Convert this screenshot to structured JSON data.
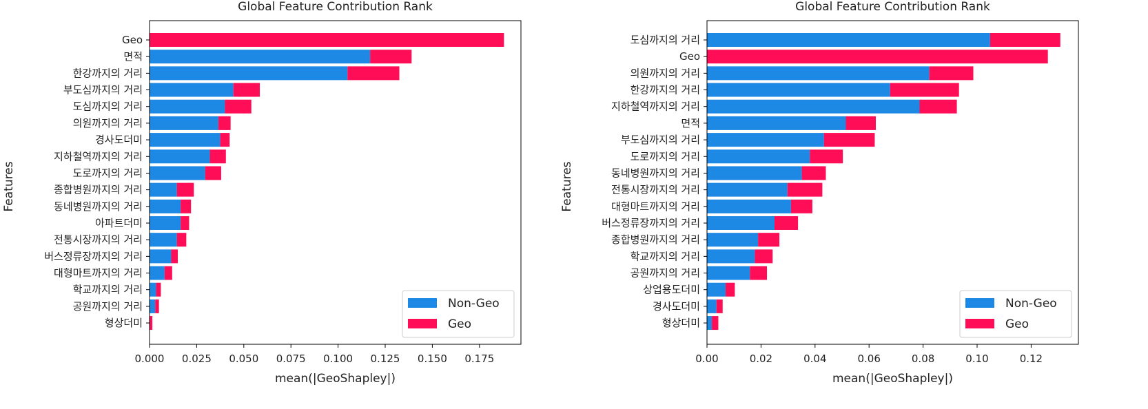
{
  "chart_data": [
    {
      "type": "bar",
      "orientation": "horizontal",
      "stacked": true,
      "title": "Global Feature Contribution Rank",
      "xlabel": "mean(|GeoShapley|)",
      "ylabel": "Features",
      "xlim": [
        0,
        0.197
      ],
      "xticks": [
        "0.000",
        "0.025",
        "0.050",
        "0.075",
        "0.100",
        "0.125",
        "0.150",
        "0.175"
      ],
      "xtick_values": [
        0,
        0.025,
        0.05,
        0.075,
        0.1,
        0.125,
        0.15,
        0.175
      ],
      "legend": {
        "position": "lower-right",
        "entries": [
          "Non-Geo",
          "Geo"
        ]
      },
      "colors": {
        "Non-Geo": "#1e88e5",
        "Geo": "#ff0d57"
      },
      "categories": [
        "Geo",
        "면적",
        "한강까지의 거리",
        "부도심까지의 거리",
        "도심까지의 거리",
        "의원까지의 거리",
        "경사도더미",
        "지하철역까지의 거리",
        "도로까지의 거리",
        "종합병원까지의 거리",
        "동네병원까지의 거리",
        "아파트더미",
        "전통시장까지의 거리",
        "버스정류장까지의 거리",
        "대형마트까지의 거리",
        "학교까지의 거리",
        "공원까지의 거리",
        "형상더미"
      ],
      "series": [
        {
          "name": "Non-Geo",
          "values": [
            0,
            0.117,
            0.105,
            0.0445,
            0.04,
            0.0365,
            0.0375,
            0.032,
            0.0295,
            0.0145,
            0.0165,
            0.0165,
            0.0145,
            0.0115,
            0.008,
            0.0035,
            0.003,
            0
          ]
        },
        {
          "name": "Geo",
          "values": [
            0.188,
            0.022,
            0.0275,
            0.014,
            0.014,
            0.0065,
            0.005,
            0.0085,
            0.0085,
            0.009,
            0.0055,
            0.0045,
            0.005,
            0.0035,
            0.004,
            0.0025,
            0.002,
            0.0015
          ]
        }
      ]
    },
    {
      "type": "bar",
      "orientation": "horizontal",
      "stacked": true,
      "title": "Global Feature Contribution Rank",
      "xlabel": "mean(|GeoShapley|)",
      "ylabel": "Features",
      "xlim": [
        0,
        0.1375
      ],
      "xticks": [
        "0.00",
        "0.02",
        "0.04",
        "0.06",
        "0.08",
        "0.10",
        "0.12"
      ],
      "xtick_values": [
        0,
        0.02,
        0.04,
        0.06,
        0.08,
        0.1,
        0.12
      ],
      "legend": {
        "position": "lower-right",
        "entries": [
          "Non-Geo",
          "Geo"
        ]
      },
      "colors": {
        "Non-Geo": "#1e88e5",
        "Geo": "#ff0d57"
      },
      "categories": [
        "도심까지의 거리",
        "Geo",
        "의원까지의 거리",
        "한강까지의 거리",
        "지하철역까지의 거리",
        "면적",
        "부도심까지의 거리",
        "도로까지의 거리",
        "동네병원까지의 거리",
        "전통시장까지의 거리",
        "대형마트까지의 거리",
        "버스정류장까지의 거리",
        "종합병원까지의 거리",
        "학교까지의 거리",
        "공원까지의 거리",
        "상업용도더미",
        "경사도더미",
        "형상더미"
      ],
      "series": [
        {
          "name": "Non-Geo",
          "values": [
            0.1048,
            0,
            0.0823,
            0.0678,
            0.0787,
            0.0514,
            0.0433,
            0.0381,
            0.0351,
            0.0298,
            0.0311,
            0.025,
            0.0189,
            0.0177,
            0.0159,
            0.0069,
            0.0035,
            0.0018
          ]
        },
        {
          "name": "Geo",
          "values": [
            0.026,
            0.1262,
            0.0163,
            0.0255,
            0.0138,
            0.0111,
            0.0188,
            0.0122,
            0.0089,
            0.0129,
            0.0079,
            0.0087,
            0.0079,
            0.0066,
            0.0063,
            0.0034,
            0.0023,
            0.0024
          ]
        }
      ]
    }
  ]
}
